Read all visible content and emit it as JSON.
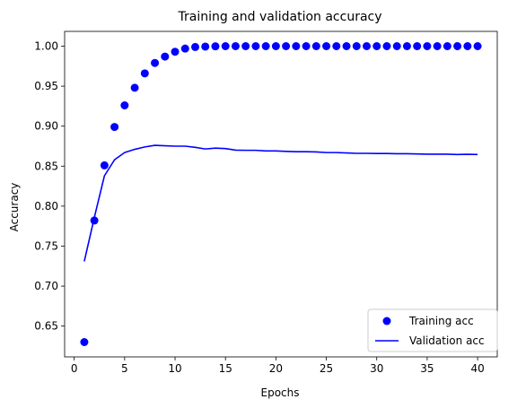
{
  "chart_data": {
    "type": "line",
    "title": "Training and validation accuracy",
    "xlabel": "Epochs",
    "ylabel": "Accuracy",
    "xlim": [
      -0.95,
      41.95
    ],
    "ylim": [
      0.6115,
      1.0185
    ],
    "xticks": [
      0,
      5,
      10,
      15,
      20,
      25,
      30,
      35,
      40
    ],
    "yticks": [
      0.65,
      0.7,
      0.75,
      0.8,
      0.85,
      0.9,
      0.95,
      1.0
    ],
    "ytick_labels": [
      "0.65",
      "0.70",
      "0.75",
      "0.80",
      "0.85",
      "0.90",
      "0.95",
      "1.00"
    ],
    "grid": false,
    "legend_position": "lower-right",
    "colors": {
      "series": "#0000ff"
    },
    "x": [
      1,
      2,
      3,
      4,
      5,
      6,
      7,
      8,
      9,
      10,
      11,
      12,
      13,
      14,
      15,
      16,
      17,
      18,
      19,
      20,
      21,
      22,
      23,
      24,
      25,
      26,
      27,
      28,
      29,
      30,
      31,
      32,
      33,
      34,
      35,
      36,
      37,
      38,
      39,
      40
    ],
    "series": [
      {
        "name": "Training acc",
        "style": "markers",
        "values": [
          0.63,
          0.782,
          0.851,
          0.899,
          0.926,
          0.948,
          0.966,
          0.979,
          0.987,
          0.993,
          0.997,
          0.999,
          0.9995,
          0.9998,
          1.0,
          1.0,
          1.0,
          1.0,
          1.0,
          1.0,
          1.0,
          1.0,
          1.0,
          1.0,
          1.0,
          1.0,
          1.0,
          1.0,
          1.0,
          1.0,
          1.0,
          1.0,
          1.0,
          1.0,
          1.0,
          1.0,
          1.0,
          1.0,
          1.0,
          1.0
        ]
      },
      {
        "name": "Validation acc",
        "style": "line",
        "values": [
          0.731,
          0.786,
          0.838,
          0.858,
          0.867,
          0.871,
          0.874,
          0.876,
          0.8755,
          0.875,
          0.875,
          0.8735,
          0.8715,
          0.8725,
          0.872,
          0.87,
          0.8698,
          0.8698,
          0.869,
          0.869,
          0.8685,
          0.868,
          0.868,
          0.8678,
          0.867,
          0.867,
          0.8665,
          0.866,
          0.866,
          0.8658,
          0.8658,
          0.8655,
          0.8655,
          0.8652,
          0.865,
          0.865,
          0.865,
          0.8645,
          0.8648,
          0.8645
        ]
      }
    ]
  }
}
